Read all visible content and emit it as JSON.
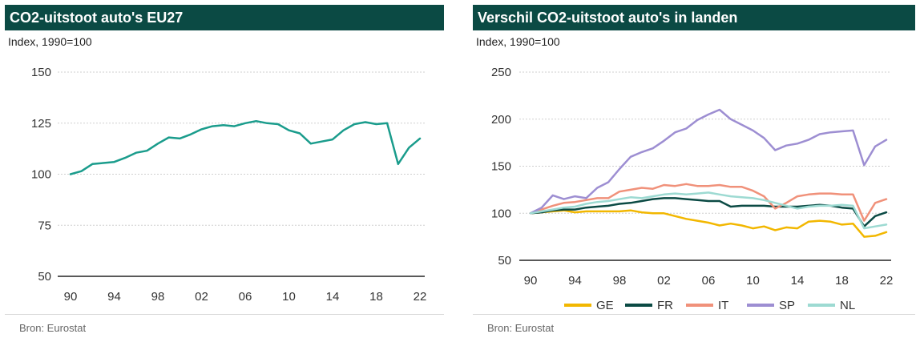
{
  "colors": {
    "header_bg": "#0b4a44",
    "eu_line": "#1a9c8c",
    "GE": "#f2b700",
    "FR": "#0b4a44",
    "IT": "#f0917a",
    "SP": "#9d8ed2",
    "NL": "#9ddad2"
  },
  "chart_data": [
    {
      "type": "line",
      "title": "CO2-uitstoot auto's EU27",
      "subtitle": "Index, 1990=100",
      "source": "Bron: Eurostat",
      "x": [
        1990,
        1991,
        1992,
        1993,
        1994,
        1995,
        1996,
        1997,
        1998,
        1999,
        2000,
        2001,
        2002,
        2003,
        2004,
        2005,
        2006,
        2007,
        2008,
        2009,
        2010,
        2011,
        2012,
        2013,
        2014,
        2015,
        2016,
        2017,
        2018,
        2019,
        2020,
        2021,
        2022
      ],
      "x_tick_labels": [
        "90",
        "94",
        "98",
        "02",
        "06",
        "10",
        "14",
        "18",
        "22"
      ],
      "x_tick_values": [
        1990,
        1994,
        1998,
        2002,
        2006,
        2010,
        2014,
        2018,
        2022
      ],
      "y_ticks": [
        50,
        75,
        100,
        125,
        150
      ],
      "ylim": [
        50,
        150
      ],
      "grid": "horizontal",
      "series": [
        {
          "values": [
            100,
            101.5,
            105,
            105.5,
            106,
            108,
            110.5,
            111.5,
            115,
            118,
            117.5,
            119.5,
            122,
            123.5,
            124,
            123.5,
            125,
            126,
            125,
            124.5,
            121.5,
            120,
            115,
            116,
            117,
            121.5,
            124.5,
            125.5,
            124.5,
            125,
            105,
            113,
            117.5
          ]
        }
      ]
    },
    {
      "type": "line",
      "title": "Verschil CO2-uitstoot auto's in landen",
      "subtitle": "Index, 1990=100",
      "source": "Bron: Eurostat",
      "x": [
        1990,
        1991,
        1992,
        1993,
        1994,
        1995,
        1996,
        1997,
        1998,
        1999,
        2000,
        2001,
        2002,
        2003,
        2004,
        2005,
        2006,
        2007,
        2008,
        2009,
        2010,
        2011,
        2012,
        2013,
        2014,
        2015,
        2016,
        2017,
        2018,
        2019,
        2020,
        2021,
        2022
      ],
      "x_tick_labels": [
        "90",
        "94",
        "98",
        "02",
        "06",
        "10",
        "14",
        "18",
        "22"
      ],
      "x_tick_values": [
        1990,
        1994,
        1998,
        2002,
        2006,
        2010,
        2014,
        2018,
        2022
      ],
      "y_ticks": [
        50,
        100,
        150,
        200,
        250
      ],
      "ylim": [
        50,
        250
      ],
      "grid": "horizontal",
      "legend_position": "bottom",
      "series": [
        {
          "name": "GE",
          "values": [
            100,
            101,
            102,
            103,
            101,
            102,
            102,
            102,
            102,
            103,
            101,
            100,
            100,
            97,
            94,
            92,
            90,
            87,
            89,
            87,
            84,
            86,
            82,
            85,
            84,
            91,
            92,
            91,
            88,
            89,
            75,
            76,
            80
          ]
        },
        {
          "name": "FR",
          "values": [
            100,
            101,
            103,
            104,
            104,
            106,
            107,
            108,
            110,
            111,
            113,
            115,
            116,
            116,
            115,
            114,
            113,
            113,
            107,
            108,
            108,
            108,
            107,
            107,
            107,
            108,
            109,
            108,
            106,
            105,
            86,
            97,
            101
          ]
        },
        {
          "name": "IT",
          "values": [
            100,
            104,
            108,
            111,
            112,
            114,
            116,
            116,
            123,
            125,
            127,
            126,
            130,
            129,
            131,
            129,
            129,
            130,
            128,
            128,
            124,
            118,
            105,
            111,
            118,
            120,
            121,
            121,
            120,
            120,
            92,
            111,
            115
          ]
        },
        {
          "name": "SP",
          "values": [
            100,
            106,
            119,
            115,
            118,
            116,
            127,
            133,
            147,
            160,
            165,
            169,
            177,
            186,
            190,
            199,
            205,
            210,
            200,
            194,
            188,
            180,
            167,
            172,
            174,
            178,
            184,
            186,
            187,
            188,
            151,
            171,
            178
          ]
        },
        {
          "name": "NL",
          "values": [
            100,
            102,
            104,
            106,
            107,
            110,
            112,
            113,
            115,
            117,
            116,
            118,
            120,
            121,
            120,
            121,
            122,
            120,
            118,
            117,
            116,
            114,
            111,
            108,
            105,
            107,
            108,
            108,
            109,
            108,
            84,
            86,
            88
          ]
        }
      ]
    }
  ]
}
